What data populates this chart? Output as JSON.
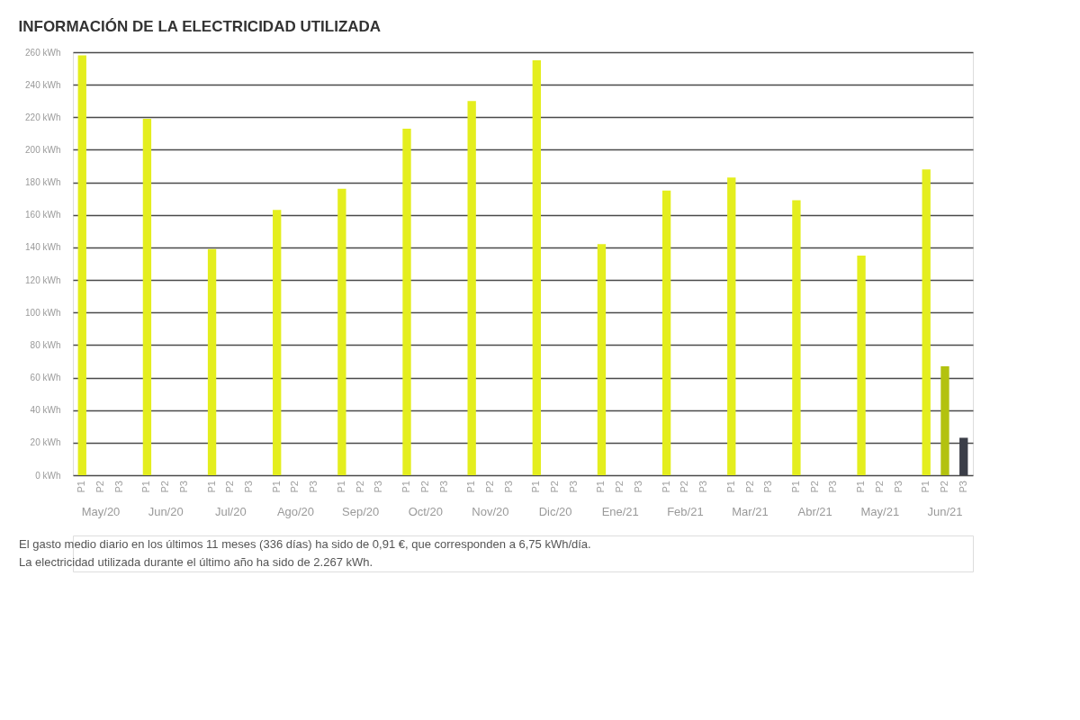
{
  "chart_data": {
    "type": "bar",
    "title": "INFORMACIÓN DE LA ELECTRICIDAD UTILIZADA",
    "categories": [
      "May/20",
      "Jun/20",
      "Jul/20",
      "Ago/20",
      "Sep/20",
      "Oct/20",
      "Nov/20",
      "Dic/20",
      "Ene/21",
      "Feb/21",
      "Mar/21",
      "Abr/21",
      "May/21",
      "Jun/21"
    ],
    "series": [
      {
        "name": "P1",
        "color": "#e4ee1e",
        "values": [
          258,
          219,
          139,
          163,
          176,
          213,
          230,
          255,
          142,
          175,
          183,
          169,
          135,
          188
        ]
      },
      {
        "name": "P2",
        "color": "#b3c20f",
        "values": [
          null,
          null,
          null,
          null,
          null,
          null,
          null,
          null,
          null,
          null,
          null,
          null,
          null,
          67
        ]
      },
      {
        "name": "P3",
        "color": "#3b3e48",
        "values": [
          null,
          null,
          null,
          null,
          null,
          null,
          null,
          null,
          null,
          null,
          null,
          null,
          null,
          23
        ]
      }
    ],
    "ylim": [
      0,
      260
    ],
    "yticks": [
      {
        "value": 0,
        "label": "0 kWh"
      },
      {
        "value": 20,
        "label": "20 kWh"
      },
      {
        "value": 40,
        "label": "40 kWh"
      },
      {
        "value": 60,
        "label": "60 kWh"
      },
      {
        "value": 80,
        "label": "80 kWh"
      },
      {
        "value": 100,
        "label": "100 kWh"
      },
      {
        "value": 120,
        "label": "120 kWh"
      },
      {
        "value": 140,
        "label": "140 kWh"
      },
      {
        "value": 160,
        "label": "160 kWh"
      },
      {
        "value": 180,
        "label": "180 kWh"
      },
      {
        "value": 200,
        "label": "200 kWh"
      },
      {
        "value": 220,
        "label": "220 kWh"
      },
      {
        "value": 240,
        "label": "240 kWh"
      },
      {
        "value": 260,
        "label": "260 kWh"
      }
    ],
    "grid": "y",
    "annotations": [
      "El gasto medio diario en los últimos 11 meses (336 días) ha sido de 0,91 €, que corresponden a 6,75 kWh/día.",
      "La electricidad utilizada durante el último año ha sido de 2.267 kWh."
    ]
  }
}
